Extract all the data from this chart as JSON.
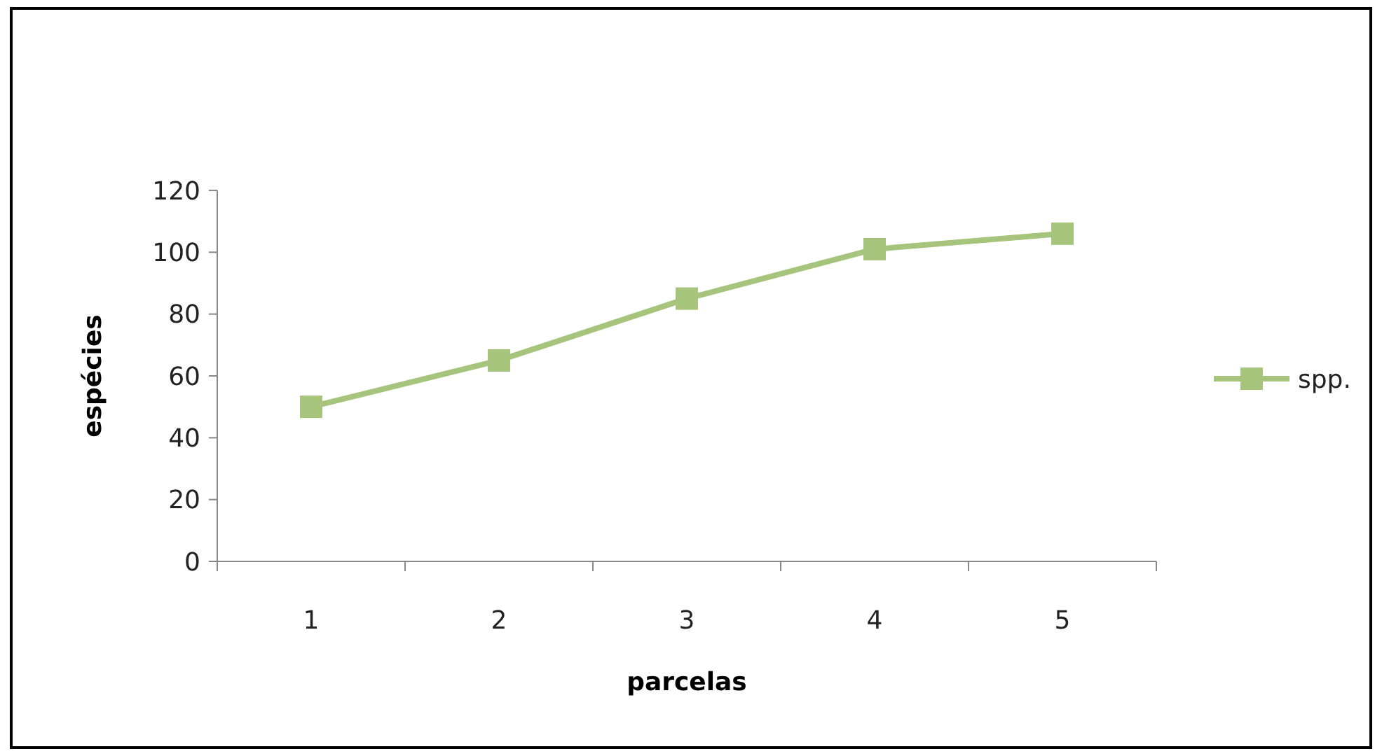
{
  "chart_data": {
    "type": "line",
    "xlabel": "parcelas",
    "ylabel": "espécies",
    "categories": [
      "1",
      "2",
      "3",
      "4",
      "5"
    ],
    "series": [
      {
        "name": "spp.",
        "color": "#a6c47c",
        "values": [
          50,
          65,
          85,
          101,
          106
        ]
      }
    ],
    "ylim": [
      0,
      120
    ],
    "yticks": [
      0,
      20,
      40,
      60,
      80,
      100,
      120
    ],
    "grid": false,
    "legend": "right",
    "marker": "square",
    "line_style": "solid"
  }
}
